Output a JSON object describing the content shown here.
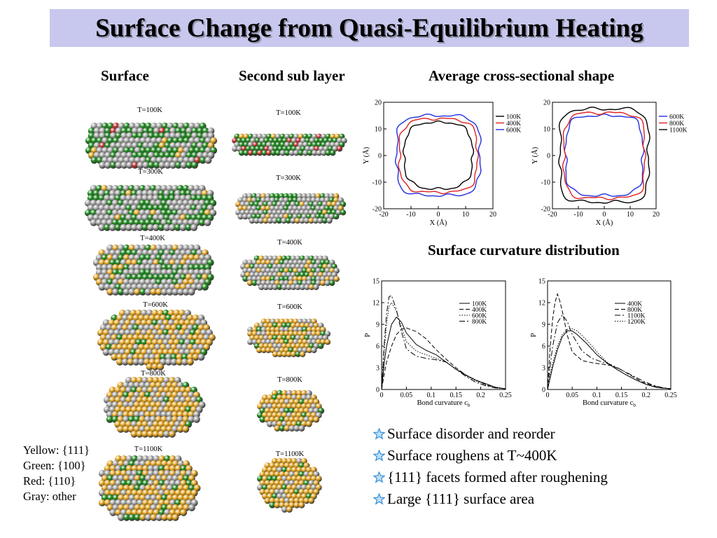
{
  "title": "Surface Change from Quasi-Equilibrium Heating",
  "headers": {
    "surface": "Surface",
    "second_sub_layer": "Second sub layer",
    "cross_section": "Average cross-sectional shape",
    "curvature": "Surface curvature distribution"
  },
  "surface_temps": [
    "T=100K",
    "T=300K",
    "T=400K",
    "T=600K",
    "T=800K",
    "T=1100K"
  ],
  "sublayer_temps": [
    "T=100K",
    "T=300K",
    "T=400K",
    "T=600K",
    "T=800K",
    "T=1100K"
  ],
  "legend_lines": [
    "Yellow: {111}",
    "Green: {100}",
    "Red: {110}",
    "Gray: other"
  ],
  "bullets": [
    "Surface disorder and reorder",
    "Surface roughens at T~400K",
    "{111} facets formed after roughening",
    "Large {111} surface area"
  ],
  "colors": {
    "title_bg": "#c8c8ee",
    "yellow_111": "#e8a826",
    "green_100": "#1f8a1f",
    "red_110": "#c83030",
    "gray_other": "#a8a8a8",
    "line_black": "#000000",
    "line_red": "#e02020",
    "line_blue": "#2030e0",
    "bullet_star": "#3a8fd8"
  },
  "chart_data": [
    {
      "type": "line",
      "title": "",
      "xlabel": "X (Å)",
      "ylabel": "Y (Å)",
      "xlim": [
        -20,
        20
      ],
      "ylim": [
        -20,
        20
      ],
      "xticks": [
        "-20",
        "-10",
        "0",
        "10",
        "20"
      ],
      "yticks": [
        "-20",
        "-10",
        "0",
        "10",
        "20"
      ],
      "legend_position": "top-right",
      "series": [
        {
          "name": "100K",
          "color": "#000000",
          "shape": {
            "ax": 12.5,
            "ay": 12.5,
            "n": 3.0
          }
        },
        {
          "name": "400K",
          "color": "#e02020",
          "shape": {
            "ax": 14.2,
            "ay": 13.8,
            "n": 3.6
          }
        },
        {
          "name": "600K",
          "color": "#2030e0",
          "shape": {
            "ax": 15.2,
            "ay": 15.0,
            "n": 4.2
          }
        }
      ]
    },
    {
      "type": "line",
      "title": "",
      "xlabel": "X (Å)",
      "ylabel": "Y (Å)",
      "xlim": [
        -20,
        20
      ],
      "ylim": [
        -20,
        20
      ],
      "xticks": [
        "-20",
        "-10",
        "0",
        "10",
        "20"
      ],
      "yticks": [
        "-20",
        "-10",
        "0",
        "10",
        "20"
      ],
      "legend_position": "top-right",
      "series": [
        {
          "name": "600K",
          "color": "#2030e0",
          "shape": {
            "ax": 14.8,
            "ay": 15.0,
            "n": 4.2
          }
        },
        {
          "name": "800K",
          "color": "#e02020",
          "shape": {
            "ax": 15.5,
            "ay": 16.0,
            "n": 4.8
          }
        },
        {
          "name": "1100K",
          "color": "#000000",
          "shape": {
            "ax": 17.0,
            "ay": 17.5,
            "n": 5.5
          }
        }
      ]
    },
    {
      "type": "line",
      "title": "",
      "xlabel": "Bond curvature c",
      "xlabel_sub": "b",
      "ylabel": "P",
      "xlim": [
        0,
        0.25
      ],
      "ylim": [
        0,
        15
      ],
      "xticks": [
        "0",
        "0.05",
        "0.1",
        "0.15",
        "0.2",
        "0.25"
      ],
      "yticks": [
        "0",
        "3",
        "6",
        "9",
        "12",
        "15"
      ],
      "legend_position": "top-right",
      "series": [
        {
          "name": "100K",
          "dash": "",
          "x": [
            0,
            0.005,
            0.01,
            0.02,
            0.03,
            0.04,
            0.05,
            0.07,
            0.09,
            0.11,
            0.13,
            0.15,
            0.17,
            0.19,
            0.21,
            0.23,
            0.25
          ],
          "y": [
            0,
            3.5,
            6.0,
            9.0,
            10.0,
            9.3,
            7.8,
            6.2,
            5.4,
            4.8,
            3.8,
            2.8,
            2.0,
            1.3,
            0.8,
            0.3,
            0.1
          ]
        },
        {
          "name": "400K",
          "dash": "6,3",
          "x": [
            0,
            0.005,
            0.01,
            0.02,
            0.03,
            0.04,
            0.05,
            0.07,
            0.09,
            0.11,
            0.13,
            0.15,
            0.17,
            0.19,
            0.21,
            0.23,
            0.25
          ],
          "y": [
            0,
            2.0,
            3.8,
            6.0,
            7.6,
            8.3,
            8.5,
            8.0,
            7.0,
            5.5,
            4.2,
            3.0,
            2.0,
            1.3,
            0.7,
            0.3,
            0.1
          ]
        },
        {
          "name": "600K",
          "dash": "1.5,2",
          "x": [
            0,
            0.005,
            0.01,
            0.015,
            0.02,
            0.03,
            0.04,
            0.05,
            0.07,
            0.09,
            0.11,
            0.13,
            0.15,
            0.17,
            0.19,
            0.21,
            0.23,
            0.25
          ],
          "y": [
            0,
            5.0,
            9.0,
            11.5,
            12.0,
            10.8,
            8.6,
            6.6,
            5.3,
            4.8,
            4.3,
            3.8,
            2.8,
            1.9,
            1.2,
            0.6,
            0.2,
            0.1
          ]
        },
        {
          "name": "800K",
          "dash": "8,3,2,3",
          "x": [
            0,
            0.005,
            0.01,
            0.015,
            0.02,
            0.03,
            0.04,
            0.05,
            0.07,
            0.09,
            0.11,
            0.13,
            0.15,
            0.17,
            0.19,
            0.21,
            0.23,
            0.25
          ],
          "y": [
            0,
            6.0,
            10.5,
            12.8,
            13.0,
            11.0,
            8.0,
            5.6,
            4.6,
            4.3,
            4.1,
            3.8,
            2.8,
            1.8,
            1.0,
            0.5,
            0.2,
            0.1
          ]
        }
      ]
    },
    {
      "type": "line",
      "title": "",
      "xlabel": "Bond curvature c",
      "xlabel_sub": "b",
      "ylabel": "P",
      "xlim": [
        0,
        0.25
      ],
      "ylim": [
        0,
        15
      ],
      "xticks": [
        "0",
        "0.05",
        "0.1",
        "0.15",
        "0.2",
        "0.25"
      ],
      "yticks": [
        "0",
        "3",
        "6",
        "9",
        "12",
        "15"
      ],
      "legend_position": "top-right",
      "series": [
        {
          "name": "400K",
          "dash": "",
          "x": [
            0,
            0.005,
            0.01,
            0.02,
            0.03,
            0.04,
            0.05,
            0.06,
            0.08,
            0.1,
            0.12,
            0.14,
            0.16,
            0.18,
            0.2,
            0.22,
            0.25
          ],
          "y": [
            0,
            1.5,
            3.0,
            5.5,
            7.3,
            8.1,
            8.1,
            7.6,
            6.3,
            4.8,
            3.7,
            2.8,
            2.0,
            1.3,
            0.7,
            0.3,
            0.1
          ]
        },
        {
          "name": "800K",
          "dash": "6,3",
          "x": [
            0,
            0.005,
            0.01,
            0.015,
            0.02,
            0.025,
            0.03,
            0.04,
            0.05,
            0.07,
            0.09,
            0.11,
            0.13,
            0.15,
            0.17,
            0.19,
            0.21,
            0.23,
            0.25
          ],
          "y": [
            0,
            5.5,
            9.5,
            12.0,
            13.2,
            12.2,
            10.8,
            7.5,
            5.2,
            4.0,
            3.7,
            3.5,
            3.3,
            2.7,
            1.9,
            1.1,
            0.6,
            0.2,
            0.1
          ]
        },
        {
          "name": "1100K",
          "dash": "8,3,2,3",
          "x": [
            0,
            0.005,
            0.01,
            0.02,
            0.03,
            0.04,
            0.05,
            0.07,
            0.09,
            0.11,
            0.13,
            0.15,
            0.17,
            0.19,
            0.21,
            0.23,
            0.25
          ],
          "y": [
            0,
            3.0,
            5.8,
            9.2,
            10.3,
            9.4,
            7.6,
            5.3,
            4.3,
            3.8,
            3.4,
            2.7,
            2.0,
            1.3,
            0.7,
            0.3,
            0.1
          ]
        },
        {
          "name": "1200K",
          "dash": "1.5,2",
          "x": [
            0,
            0.005,
            0.01,
            0.02,
            0.03,
            0.04,
            0.05,
            0.06,
            0.08,
            0.1,
            0.12,
            0.14,
            0.16,
            0.18,
            0.2,
            0.22,
            0.25
          ],
          "y": [
            0,
            1.8,
            3.5,
            6.0,
            7.6,
            8.3,
            8.4,
            8.1,
            6.8,
            5.2,
            3.8,
            2.8,
            2.0,
            1.3,
            0.7,
            0.3,
            0.1
          ]
        }
      ]
    }
  ]
}
